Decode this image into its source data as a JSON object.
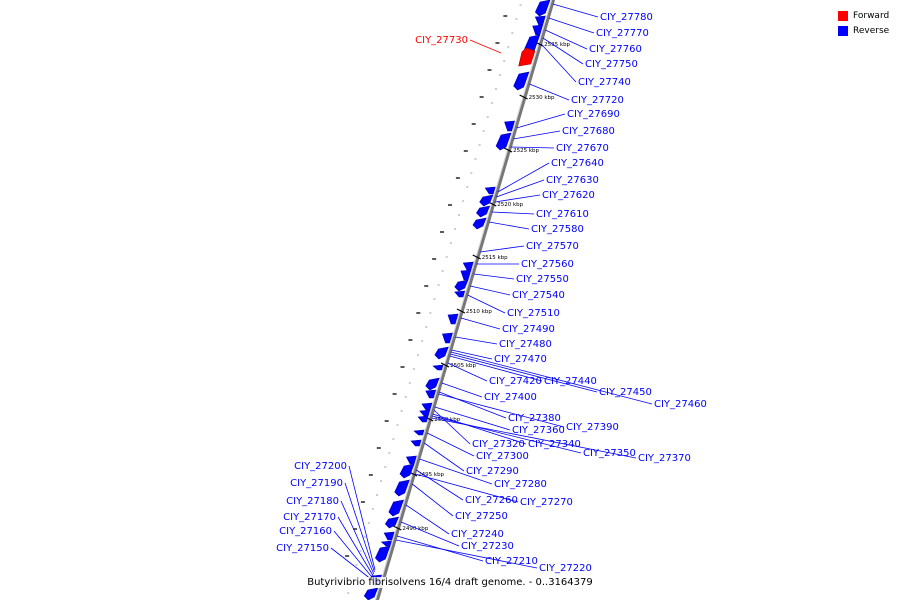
{
  "legend": {
    "forward_label": "Forward",
    "reverse_label": "Reverse",
    "forward_color": "#ff0000",
    "reverse_color": "#0000ff"
  },
  "caption": "Butyrivibrio fibrisolvens 16/4 draft genome. - 0..3164379",
  "ruler_labels": [
    "2535 kbp",
    "2530 kbp",
    "2525 kbp",
    "2520 kbp",
    "2515 kbp",
    "2510 kbp",
    "2505 kbp",
    "2500 kbp",
    "2495 kbp",
    "2490 kbp"
  ],
  "forward_genes": [
    "CIY_27730"
  ],
  "reverse_genes_right": [
    "CIY_27780",
    "CIY_27770",
    "CIY_27760",
    "CIY_27750",
    "CIY_27740",
    "CIY_27720",
    "CIY_27690",
    "CIY_27680",
    "CIY_27670",
    "CIY_27640",
    "CIY_27630",
    "CIY_27620",
    "CIY_27610",
    "CIY_27580",
    "CIY_27570",
    "CIY_27560",
    "CIY_27550",
    "CIY_27540",
    "CIY_27510",
    "CIY_27490",
    "CIY_27480",
    "CIY_27470",
    "CIY_27420",
    "CIY_27440",
    "CIY_27450",
    "CIY_27460",
    "CIY_27400",
    "CIY_27380",
    "CIY_27390",
    "CIY_27360",
    "CIY_27320",
    "CIY_27340",
    "CIY_27350",
    "CIY_27370",
    "CIY_27300",
    "CIY_27290",
    "CIY_27280",
    "CIY_27260",
    "CIY_27270",
    "CIY_27250",
    "CIY_27240",
    "CIY_27230",
    "CIY_27210",
    "CIY_27220"
  ],
  "reverse_genes_left": [
    "CIY_27200",
    "CIY_27190",
    "CIY_27180",
    "CIY_27170",
    "CIY_27160",
    "CIY_27150"
  ]
}
